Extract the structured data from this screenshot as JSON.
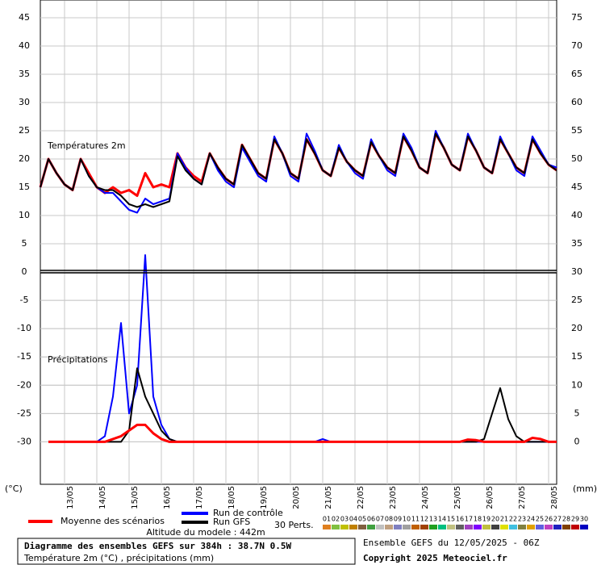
{
  "chart_data": [
    {
      "type": "line",
      "title": "Températures 2m",
      "x": [
        0,
        6,
        12,
        18,
        24,
        30,
        36,
        42,
        48,
        54,
        60,
        66,
        72,
        78,
        84,
        90,
        96,
        102,
        108,
        114,
        120,
        126,
        132,
        138,
        144,
        150,
        156,
        162,
        168,
        174,
        180,
        186,
        192,
        198,
        204,
        210,
        216,
        222,
        228,
        234,
        240,
        246,
        252,
        258,
        264,
        270,
        276,
        282,
        288,
        294,
        300,
        306,
        312,
        318,
        324,
        330,
        336,
        342,
        348,
        354,
        360,
        366,
        372,
        378,
        384
      ],
      "xlim": [
        0,
        384
      ],
      "ylim": [
        0,
        48
      ],
      "yticks": [
        0,
        5,
        10,
        15,
        20,
        25,
        30,
        35,
        40,
        45
      ],
      "y2lim": [
        30,
        78
      ],
      "y2ticks": [
        30,
        35,
        40,
        45,
        50,
        55,
        60,
        65,
        70,
        75
      ],
      "grid": true,
      "series": [
        {
          "name": "Moyenne des scénarios",
          "color": "#ff0000",
          "values": [
            15,
            20,
            17.5,
            15.5,
            14.5,
            20,
            17.5,
            15,
            14,
            15,
            14,
            14.5,
            13.5,
            17.5,
            15,
            15.5,
            15,
            21,
            18.5,
            17,
            16,
            21,
            18.5,
            16.5,
            15.5,
            22.5,
            20,
            17.5,
            16.5,
            23.5,
            21,
            17.5,
            16.5,
            23.5,
            21,
            18,
            17,
            22,
            19.5,
            18,
            17,
            23,
            20.5,
            18.5,
            17.5,
            24,
            21.5,
            18.5,
            17.5,
            24.5,
            22,
            19,
            18,
            24,
            21.5,
            18.5,
            17.5,
            23.5,
            21,
            18.5,
            17.5,
            23.5,
            21,
            19,
            18
          ]
        },
        {
          "name": "Run de contrôle",
          "color": "#0000ff",
          "values": [
            15,
            20,
            17.5,
            15.5,
            14.5,
            20,
            17,
            15,
            14,
            14,
            12.5,
            11,
            10.5,
            13,
            12,
            12.5,
            13,
            21,
            18.5,
            16.5,
            15.5,
            21,
            18,
            16,
            15,
            22,
            19.5,
            17,
            16,
            24,
            21,
            17,
            16,
            24.5,
            21.5,
            18,
            17,
            22.5,
            19.5,
            17.5,
            16.5,
            23.5,
            20.5,
            18,
            17,
            24.5,
            22,
            18.5,
            17.5,
            25,
            22,
            19,
            18,
            24.5,
            21.5,
            18.5,
            17.5,
            24,
            21,
            18,
            17,
            24,
            21.5,
            19,
            18.5
          ]
        },
        {
          "name": "Run GFS",
          "color": "#000000",
          "values": [
            15,
            20,
            17.5,
            15.5,
            14.5,
            20,
            17,
            15,
            14.5,
            14.5,
            13.5,
            12,
            11.5,
            12,
            11.5,
            12,
            12.5,
            20.5,
            18,
            16.5,
            15.5,
            21,
            18.5,
            16.5,
            15.5,
            22.5,
            20,
            17.5,
            16.5,
            23.5,
            21,
            17.5,
            16.5,
            23.5,
            21,
            18,
            17,
            22,
            19.5,
            18,
            17,
            23,
            20.5,
            18.5,
            17.5,
            24,
            21.5,
            18.5,
            17.5,
            24.5,
            22,
            19,
            18,
            24,
            21.5,
            18.5,
            17.5,
            23.5,
            21,
            18.5,
            17.5,
            23.5,
            21,
            19,
            18
          ]
        }
      ]
    },
    {
      "type": "line",
      "title": "Précipitations",
      "x": [
        0,
        6,
        12,
        18,
        24,
        30,
        36,
        42,
        48,
        54,
        60,
        66,
        72,
        78,
        84,
        90,
        96,
        102,
        108,
        114,
        120,
        126,
        132,
        138,
        144,
        150,
        156,
        162,
        168,
        174,
        180,
        186,
        192,
        198,
        204,
        210,
        216,
        222,
        228,
        234,
        240,
        246,
        252,
        258,
        264,
        270,
        276,
        282,
        288,
        294,
        300,
        306,
        312,
        318,
        324,
        330,
        336,
        342,
        348,
        354,
        360,
        366,
        372,
        378,
        384
      ],
      "xlim": [
        0,
        384
      ],
      "xticks": [
        {
          "value": 18,
          "label": "13/05"
        },
        {
          "value": 42,
          "label": "14/05"
        },
        {
          "value": 66,
          "label": "15/05"
        },
        {
          "value": 90,
          "label": "16/05"
        },
        {
          "value": 114,
          "label": "17/05"
        },
        {
          "value": 138,
          "label": "18/05"
        },
        {
          "value": 162,
          "label": "19/05"
        },
        {
          "value": 186,
          "label": "20/05"
        },
        {
          "value": 210,
          "label": "21/05"
        },
        {
          "value": 234,
          "label": "22/05"
        },
        {
          "value": 258,
          "label": "23/05"
        },
        {
          "value": 282,
          "label": "24/05"
        },
        {
          "value": 306,
          "label": "25/05"
        },
        {
          "value": 330,
          "label": "26/05"
        },
        {
          "value": 354,
          "label": "27/05"
        },
        {
          "value": 378,
          "label": "28/05"
        }
      ],
      "ylim": [
        -7.5,
        30
      ],
      "yticks": [
        0,
        5,
        10,
        15,
        20,
        25
      ],
      "y_label": "(mm)",
      "y2lim": [
        -37.5,
        0
      ],
      "y2ticks": [
        -30,
        -25,
        -20,
        -15,
        -10,
        -5
      ],
      "y2_label": "(°C)",
      "grid": true,
      "series": [
        {
          "color": "#0000ff",
          "values": [
            null,
            0,
            0,
            0,
            0,
            0,
            0,
            0,
            1,
            8,
            21,
            5,
            10,
            33,
            8,
            3,
            0.5,
            0,
            0,
            0,
            0,
            0,
            0,
            0,
            0,
            0,
            0,
            0,
            0,
            0,
            0,
            0,
            0,
            0,
            0,
            0.5,
            0,
            0,
            0,
            0,
            0,
            0,
            0,
            0,
            0,
            0,
            0,
            0,
            0,
            0,
            0,
            0,
            0,
            0,
            0,
            0,
            0,
            0,
            0,
            0,
            0,
            0,
            0,
            0,
            0
          ]
        },
        {
          "color": "#000000",
          "values": [
            null,
            0,
            0,
            0,
            0,
            0,
            0,
            0,
            0,
            0,
            0,
            2,
            13,
            8,
            5,
            2,
            0.5,
            0,
            0,
            0,
            0,
            0,
            0,
            0,
            0,
            0,
            0,
            0,
            0,
            0,
            0,
            0,
            0,
            0,
            0,
            0,
            0,
            0,
            0,
            0,
            0,
            0,
            0,
            0,
            0,
            0,
            0,
            0,
            0,
            0,
            0,
            0,
            0,
            0,
            0,
            0.5,
            5,
            9.5,
            4,
            1,
            0,
            0,
            0,
            0,
            0
          ]
        },
        {
          "color": "#ff0000",
          "values": [
            null,
            0,
            0,
            0,
            0,
            0,
            0,
            0,
            0,
            0.5,
            1,
            2,
            3,
            3,
            1.5,
            0.5,
            0,
            0,
            0,
            0,
            0,
            0,
            0,
            0,
            0,
            0,
            0,
            0,
            0,
            0,
            0,
            0,
            0,
            0,
            0,
            0,
            0,
            0,
            0,
            0,
            0,
            0,
            0,
            0,
            0,
            0,
            0,
            0,
            0,
            0,
            0,
            0,
            0,
            0.4,
            0.3,
            0,
            0,
            0,
            0,
            0,
            0,
            0.7,
            0.5,
            0,
            0
          ]
        }
      ]
    }
  ],
  "altitude": "Altitude du modele : 442m",
  "perturbations": {
    "label": "30 Perts.",
    "members": [
      {
        "name": "01",
        "color": "#e08020"
      },
      {
        "name": "02",
        "color": "#80c040"
      },
      {
        "name": "03",
        "color": "#c0c000"
      },
      {
        "name": "04",
        "color": "#c08000"
      },
      {
        "name": "05",
        "color": "#806040"
      },
      {
        "name": "06",
        "color": "#40a040"
      },
      {
        "name": "07",
        "color": "#c0c0c0"
      },
      {
        "name": "08",
        "color": "#c0a080"
      },
      {
        "name": "09",
        "color": "#8080c0"
      },
      {
        "name": "10",
        "color": "#a0a0a0"
      },
      {
        "name": "11",
        "color": "#c06000"
      },
      {
        "name": "12",
        "color": "#a04000"
      },
      {
        "name": "13",
        "color": "#20a020"
      },
      {
        "name": "14",
        "color": "#00c080"
      },
      {
        "name": "15",
        "color": "#c0c080"
      },
      {
        "name": "16",
        "color": "#606060"
      },
      {
        "name": "17",
        "color": "#a040c0"
      },
      {
        "name": "18",
        "color": "#8000ff"
      },
      {
        "name": "19",
        "color": "#c0c040"
      },
      {
        "name": "20",
        "color": "#404040"
      },
      {
        "name": "21",
        "color": "#e0e000"
      },
      {
        "name": "22",
        "color": "#40c0e0"
      },
      {
        "name": "23",
        "color": "#808040"
      },
      {
        "name": "24",
        "color": "#e0a000"
      },
      {
        "name": "25",
        "color": "#6060e0"
      },
      {
        "name": "26",
        "color": "#c040c0"
      },
      {
        "name": "27",
        "color": "#2020c0"
      },
      {
        "name": "28",
        "color": "#804000"
      },
      {
        "name": "29",
        "color": "#c00000"
      },
      {
        "name": "30",
        "color": "#0000c0"
      }
    ]
  },
  "footer": {
    "title": "Diagramme des ensembles GEFS sur 384h : 38.7N 0.5W",
    "subtitle": "Température 2m (°C) , précipitations (mm)",
    "run": "Ensemble GEFS du 12/05/2025 - 06Z",
    "copyright": "Copyright 2025 Meteociel.fr"
  }
}
